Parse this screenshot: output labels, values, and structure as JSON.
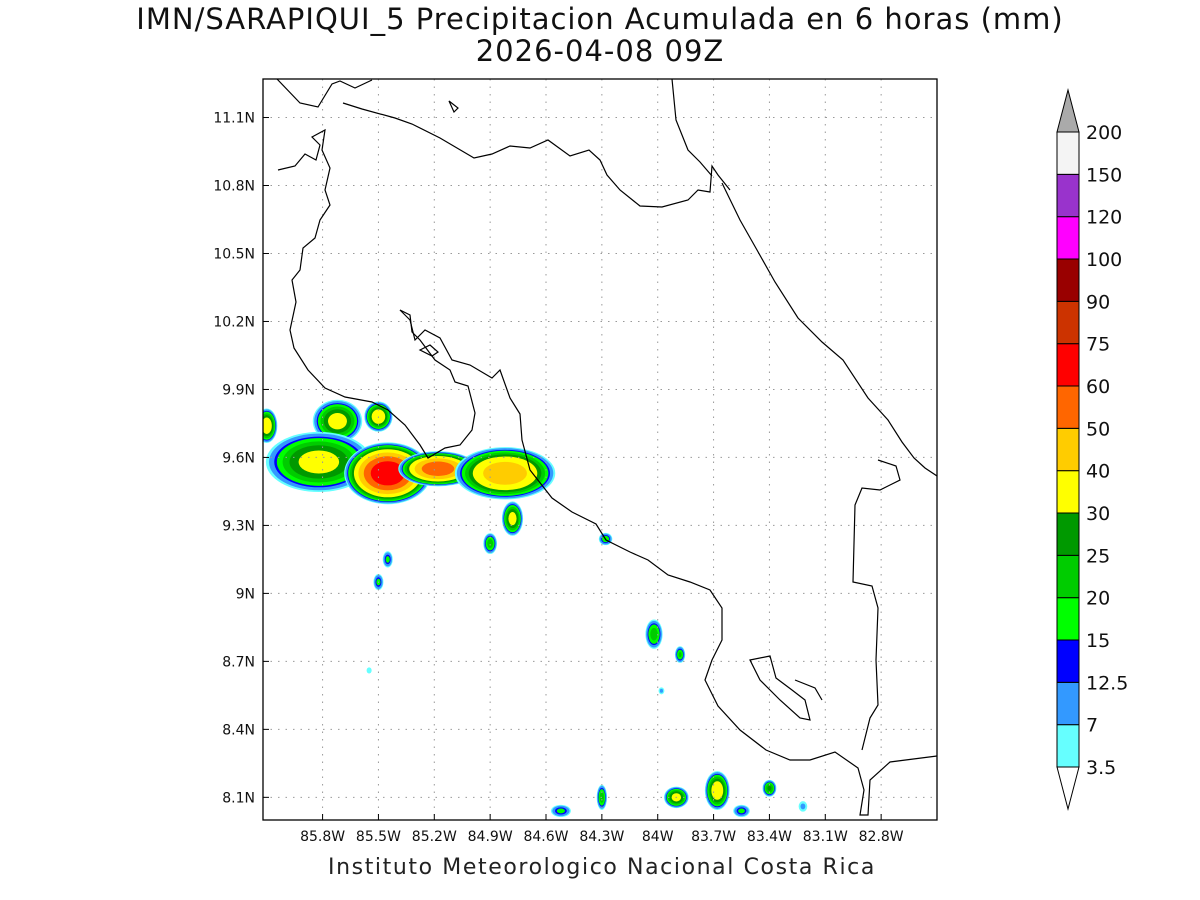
{
  "header": {
    "title": "IMN/SARAPIQUI_5 Precipitacion Acumulada en 6 horas (mm)",
    "subtitle": "2026-04-08 09Z"
  },
  "footer": {
    "credit": "Instituto Meteorologico Nacional Costa Rica"
  },
  "map": {
    "lon_range": [
      -86.12,
      -82.5
    ],
    "lat_range": [
      8.0,
      11.27
    ],
    "lat_ticks": [
      {
        "value": 11.1,
        "label": "11.1N"
      },
      {
        "value": 10.8,
        "label": "10.8N"
      },
      {
        "value": 10.5,
        "label": "10.5N"
      },
      {
        "value": 10.2,
        "label": "10.2N"
      },
      {
        "value": 9.9,
        "label": "9.9N"
      },
      {
        "value": 9.6,
        "label": "9.6N"
      },
      {
        "value": 9.3,
        "label": "9.3N"
      },
      {
        "value": 9.0,
        "label": "9N"
      },
      {
        "value": 8.7,
        "label": "8.7N"
      },
      {
        "value": 8.4,
        "label": "8.4N"
      },
      {
        "value": 8.1,
        "label": "8.1N"
      }
    ],
    "lon_ticks": [
      {
        "value": -85.8,
        "label": "85.8W"
      },
      {
        "value": -85.5,
        "label": "85.5W"
      },
      {
        "value": -85.2,
        "label": "85.2W"
      },
      {
        "value": -84.9,
        "label": "84.9W"
      },
      {
        "value": -84.6,
        "label": "84.6W"
      },
      {
        "value": -84.3,
        "label": "84.3W"
      },
      {
        "value": -84.0,
        "label": "84W"
      },
      {
        "value": -83.7,
        "label": "83.7W"
      },
      {
        "value": -83.4,
        "label": "83.4W"
      },
      {
        "value": -83.1,
        "label": "83.1W"
      },
      {
        "value": -82.8,
        "label": "82.8W"
      }
    ],
    "grid": "dotted",
    "coastline_color": "#000000"
  },
  "precipitation": [
    {
      "lon": -86.1,
      "lat": 9.74,
      "rx": 0.06,
      "ry": 0.08,
      "max_mm": 35
    },
    {
      "lon": -85.72,
      "lat": 9.76,
      "rx": 0.14,
      "ry": 0.1,
      "max_mm": 32
    },
    {
      "lon": -85.5,
      "lat": 9.78,
      "rx": 0.08,
      "ry": 0.07,
      "max_mm": 35
    },
    {
      "lon": -85.82,
      "lat": 9.58,
      "rx": 0.3,
      "ry": 0.14,
      "max_mm": 32
    },
    {
      "lon": -85.45,
      "lat": 9.53,
      "rx": 0.24,
      "ry": 0.14,
      "max_mm": 65
    },
    {
      "lon": -85.18,
      "lat": 9.55,
      "rx": 0.22,
      "ry": 0.08,
      "max_mm": 55
    },
    {
      "lon": -84.82,
      "lat": 9.53,
      "rx": 0.28,
      "ry": 0.12,
      "max_mm": 45
    },
    {
      "lon": -84.78,
      "lat": 9.33,
      "rx": 0.06,
      "ry": 0.08,
      "max_mm": 32
    },
    {
      "lon": -84.9,
      "lat": 9.22,
      "rx": 0.04,
      "ry": 0.05,
      "max_mm": 22
    },
    {
      "lon": -85.45,
      "lat": 9.15,
      "rx": 0.03,
      "ry": 0.04,
      "max_mm": 16
    },
    {
      "lon": -85.5,
      "lat": 9.05,
      "rx": 0.03,
      "ry": 0.04,
      "max_mm": 16
    },
    {
      "lon": -85.55,
      "lat": 8.66,
      "rx": 0.02,
      "ry": 0.02,
      "max_mm": 6
    },
    {
      "lon": -84.28,
      "lat": 9.24,
      "rx": 0.04,
      "ry": 0.03,
      "max_mm": 18
    },
    {
      "lon": -84.02,
      "lat": 8.82,
      "rx": 0.05,
      "ry": 0.07,
      "max_mm": 22
    },
    {
      "lon": -83.88,
      "lat": 8.73,
      "rx": 0.03,
      "ry": 0.04,
      "max_mm": 20
    },
    {
      "lon": -83.98,
      "lat": 8.57,
      "rx": 0.02,
      "ry": 0.02,
      "max_mm": 8
    },
    {
      "lon": -83.9,
      "lat": 8.1,
      "rx": 0.07,
      "ry": 0.05,
      "max_mm": 32
    },
    {
      "lon": -83.68,
      "lat": 8.13,
      "rx": 0.07,
      "ry": 0.09,
      "max_mm": 35
    },
    {
      "lon": -83.4,
      "lat": 8.14,
      "rx": 0.04,
      "ry": 0.04,
      "max_mm": 25
    },
    {
      "lon": -84.3,
      "lat": 8.1,
      "rx": 0.03,
      "ry": 0.06,
      "max_mm": 22
    },
    {
      "lon": -84.52,
      "lat": 8.04,
      "rx": 0.06,
      "ry": 0.03,
      "max_mm": 16
    },
    {
      "lon": -83.55,
      "lat": 8.04,
      "rx": 0.05,
      "ry": 0.03,
      "max_mm": 16
    },
    {
      "lon": -83.22,
      "lat": 8.06,
      "rx": 0.03,
      "ry": 0.03,
      "max_mm": 8
    }
  ],
  "colorbar": {
    "bins": [
      {
        "label": "3.5",
        "color": "#66ffff"
      },
      {
        "label": "7",
        "color": "#3399ff"
      },
      {
        "label": "12.5",
        "color": "#0000ff"
      },
      {
        "label": "15",
        "color": "#00ff00"
      },
      {
        "label": "20",
        "color": "#00cc00"
      },
      {
        "label": "25",
        "color": "#009900"
      },
      {
        "label": "30",
        "color": "#ffff00"
      },
      {
        "label": "40",
        "color": "#ffcc00"
      },
      {
        "label": "50",
        "color": "#ff6600"
      },
      {
        "label": "60",
        "color": "#ff0000"
      },
      {
        "label": "75",
        "color": "#cc3300"
      },
      {
        "label": "90",
        "color": "#990000"
      },
      {
        "label": "100",
        "color": "#ff00ff"
      },
      {
        "label": "120",
        "color": "#9933cc"
      },
      {
        "label": "150",
        "color": "#f4f4f4"
      },
      {
        "label": "200",
        "color": "#aaaaaa"
      }
    ],
    "low_color": "#ffffff",
    "high_color": "#aaaaaa"
  }
}
